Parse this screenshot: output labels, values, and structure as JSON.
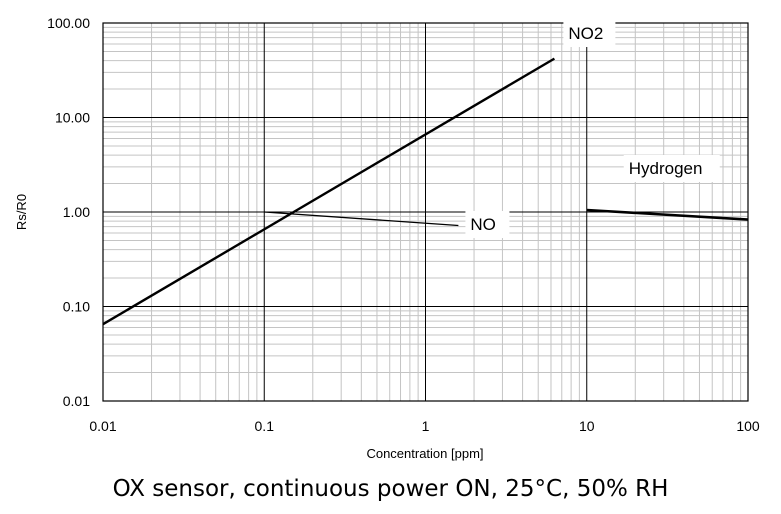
{
  "chart_data": {
    "type": "line",
    "xscale": "log",
    "yscale": "log",
    "xlim": [
      0.01,
      100
    ],
    "ylim": [
      0.01,
      100
    ],
    "grid": true,
    "xlabel": "Concentration [ppm]",
    "ylabel": "Rs/R0",
    "xticks": [
      "0.01",
      "0.1",
      "1",
      "10",
      "100"
    ],
    "yticks": [
      "0.01",
      "0.10",
      "1.00",
      "10.00",
      "100.00"
    ],
    "series": [
      {
        "name": "NO2",
        "x": [
          0.01,
          6.3
        ],
        "y": [
          0.065,
          42
        ]
      },
      {
        "name": "NO",
        "x": [
          0.1,
          1.6
        ],
        "y": [
          1.0,
          0.72
        ]
      },
      {
        "name": "Hydrogen",
        "x": [
          10,
          100
        ],
        "y": [
          1.05,
          0.83
        ]
      }
    ]
  },
  "caption": "OX sensor, continuous power ON, 25°C, 50% RH"
}
